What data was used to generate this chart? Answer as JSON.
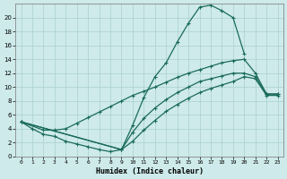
{
  "xlabel": "Humidex (Indice chaleur)",
  "bg_color": "#ceeaea",
  "grid_color": "#aacfcf",
  "line_color": "#1a6b5a",
  "xlim": [
    -0.5,
    23.5
  ],
  "ylim": [
    0,
    22
  ],
  "xticks": [
    0,
    1,
    2,
    3,
    4,
    5,
    6,
    7,
    8,
    9,
    10,
    11,
    12,
    13,
    14,
    15,
    16,
    17,
    18,
    19,
    20,
    21,
    22,
    23
  ],
  "yticks": [
    0,
    2,
    4,
    6,
    8,
    10,
    12,
    14,
    16,
    18,
    20
  ],
  "curve1_x": [
    0,
    1,
    2,
    3,
    4,
    5,
    6,
    7,
    8,
    9,
    10,
    11,
    12,
    13,
    14,
    15,
    16,
    17,
    18,
    19,
    20
  ],
  "curve1_y": [
    5.0,
    4.0,
    3.2,
    2.9,
    2.2,
    1.8,
    1.4,
    1.0,
    0.7,
    1.0,
    4.5,
    8.5,
    11.5,
    13.5,
    16.5,
    19.2,
    21.5,
    21.8,
    21.0,
    20.0,
    14.8
  ],
  "curve2_x": [
    0,
    2,
    3,
    4,
    5,
    6,
    7,
    8,
    9,
    10,
    11,
    12,
    13,
    14,
    15,
    16,
    17,
    18,
    19,
    20,
    21,
    22,
    23
  ],
  "curve2_y": [
    5.0,
    3.8,
    3.8,
    4.0,
    4.8,
    5.6,
    6.4,
    7.2,
    8.0,
    8.8,
    9.4,
    10.0,
    10.7,
    11.4,
    12.0,
    12.5,
    13.0,
    13.5,
    13.8,
    14.0,
    12.0,
    9.0,
    9.0
  ],
  "curve3_x": [
    0,
    9,
    10,
    11,
    12,
    13,
    14,
    15,
    16,
    17,
    18,
    19,
    20,
    21,
    22,
    23
  ],
  "curve3_y": [
    5.0,
    1.0,
    3.5,
    5.5,
    7.0,
    8.2,
    9.2,
    10.0,
    10.8,
    11.2,
    11.6,
    12.0,
    12.0,
    11.5,
    9.0,
    9.0
  ],
  "curve4_x": [
    0,
    9,
    10,
    11,
    12,
    13,
    14,
    15,
    16,
    17,
    18,
    19,
    20,
    21,
    22,
    23
  ],
  "curve4_y": [
    5.0,
    1.0,
    2.2,
    3.8,
    5.2,
    6.5,
    7.5,
    8.4,
    9.2,
    9.8,
    10.3,
    10.8,
    11.5,
    11.2,
    8.8,
    8.8
  ]
}
